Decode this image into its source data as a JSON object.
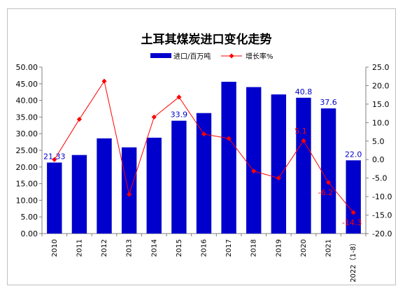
{
  "chart_data": {
    "type": "bar+line",
    "title": "土耳其煤炭进口变化走势",
    "categories": [
      "2010",
      "2011",
      "2012",
      "2013",
      "2014",
      "2015",
      "2016",
      "2017",
      "2018",
      "2019",
      "2020",
      "2021",
      "2022（1-8）"
    ],
    "series": [
      {
        "name": "进口/百万吨",
        "type": "bar",
        "axis": "left",
        "color": "#0000CC",
        "values": [
          21.33,
          23.6,
          28.6,
          25.9,
          28.8,
          33.9,
          36.2,
          45.6,
          44.0,
          41.8,
          40.8,
          37.6,
          22.0
        ],
        "labels": [
          "21.33",
          "",
          "",
          "",
          "",
          "33.9",
          "",
          "",
          "",
          "",
          "40.8",
          "37.6",
          "22.0"
        ]
      },
      {
        "name": "增长率%",
        "type": "line",
        "axis": "right",
        "color": "#FF0000",
        "values": [
          0.0,
          10.9,
          21.2,
          -9.4,
          11.5,
          16.9,
          6.9,
          5.7,
          -3.1,
          -5.0,
          5.1,
          -6.2,
          -14.3
        ],
        "labels": [
          "",
          "",
          "",
          "",
          "",
          "",
          "",
          "",
          "",
          "",
          "5.1",
          "-6.2",
          "-14.3"
        ]
      }
    ],
    "y_left": {
      "min": 0,
      "max": 50,
      "step": 5,
      "tick_labels": [
        "0.00",
        "5.00",
        "10.00",
        "15.00",
        "20.00",
        "25.00",
        "30.00",
        "35.00",
        "40.00",
        "45.00",
        "50.00"
      ]
    },
    "y_right": {
      "min": -20,
      "max": 25,
      "step": 5,
      "tick_labels": [
        "-20.0",
        "-15.0",
        "-10.0",
        "-5.0",
        "0.0",
        "5.0",
        "10.0",
        "15.0",
        "20.0",
        "25.0"
      ]
    },
    "grid": false,
    "legend_position": "top-center"
  }
}
